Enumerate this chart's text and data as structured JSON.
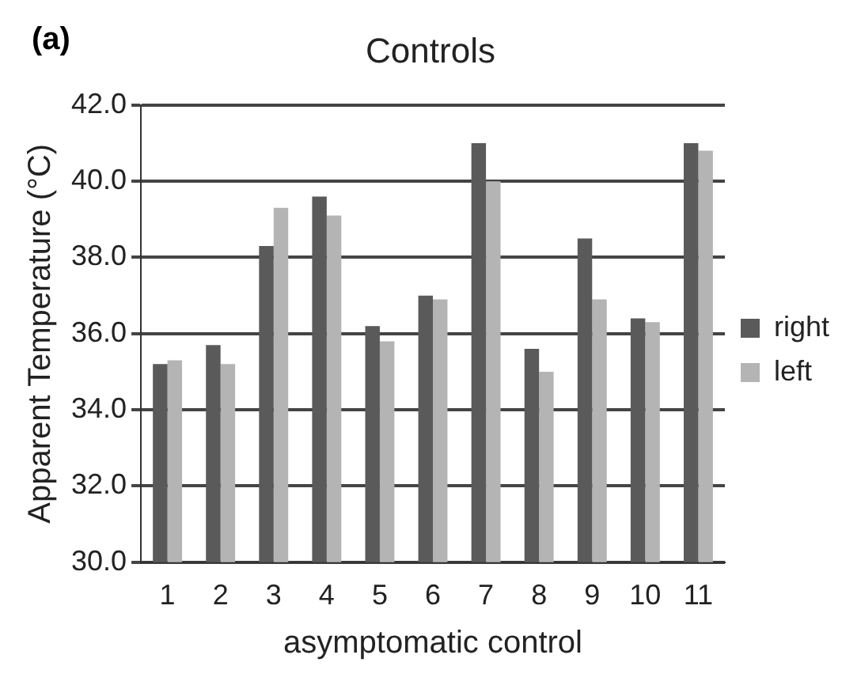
{
  "chart_data": {
    "type": "bar",
    "title": "Controls",
    "xlabel": "asymptomatic control",
    "ylabel": "Apparent Temperature (°C)",
    "annotations": [
      "(a)"
    ],
    "categories": [
      "1",
      "2",
      "3",
      "4",
      "5",
      "6",
      "7",
      "8",
      "9",
      "10",
      "11"
    ],
    "series": [
      {
        "name": "right",
        "color": "#5a5a5a",
        "values": [
          35.2,
          35.7,
          38.3,
          39.6,
          36.2,
          37.0,
          41.0,
          35.6,
          38.5,
          36.4,
          41.0
        ]
      },
      {
        "name": "left",
        "color": "#b4b4b4",
        "values": [
          35.3,
          35.2,
          39.3,
          39.1,
          35.8,
          36.9,
          40.0,
          35.0,
          36.9,
          36.3,
          40.8
        ]
      }
    ],
    "ylim": [
      30,
      42
    ],
    "yticks": [
      {
        "value": 30,
        "label": "30.0"
      },
      {
        "value": 32,
        "label": "32.0"
      },
      {
        "value": 34,
        "label": "34.0"
      },
      {
        "value": 36,
        "label": "36.0"
      },
      {
        "value": 38,
        "label": "38.0"
      },
      {
        "value": 40,
        "label": "40.0"
      },
      {
        "value": 42,
        "label": "42.0"
      }
    ],
    "grid": "y",
    "legend": "right"
  }
}
